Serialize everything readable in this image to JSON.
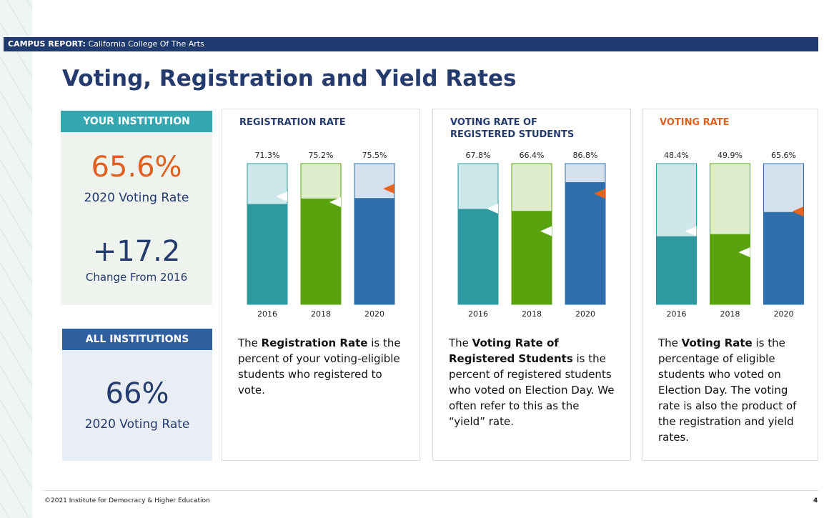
{
  "header": {
    "label": "CAMPUS REPORT:",
    "campus": "California College Of The Arts"
  },
  "title": "Voting, Registration and Yield Rates",
  "your_institution": {
    "heading": "YOUR INSTITUTION",
    "rate": "65.6%",
    "rate_label": "2020 Voting Rate",
    "change": "+17.2",
    "change_label": "Change From 2016"
  },
  "all_institutions": {
    "heading": "ALL INSTITUTIONS",
    "rate": "66%",
    "rate_label": "2020 Voting Rate"
  },
  "chart_data": [
    {
      "type": "bar",
      "title": "REGISTRATION RATE",
      "title_color": "#253b6e",
      "categories": [
        "2016",
        "2018",
        "2020"
      ],
      "values": [
        71.3,
        75.2,
        75.5
      ],
      "value_labels": [
        "71.3%",
        "75.2%",
        "75.5%"
      ],
      "markers": [
        76.6,
        72.6,
        82.2
      ],
      "marker_colors": [
        "#ffffff",
        "#ffffff",
        "#e8641e"
      ],
      "colors": [
        "#2e9aa0",
        "#5aa30f",
        "#2f6fab"
      ],
      "track_colors": [
        "#cde8ea",
        "#dfedcd",
        "#d5e0ee"
      ],
      "ylim": [
        0,
        100
      ],
      "description": [
        "The ",
        "Registration Rate",
        " is the percent of your voting-eligible students who registered to vote."
      ]
    },
    {
      "type": "bar",
      "title": "VOTING RATE OF REGISTERED STUDENTS",
      "title_color": "#253b6e",
      "categories": [
        "2016",
        "2018",
        "2020"
      ],
      "values": [
        67.8,
        66.4,
        86.8
      ],
      "value_labels": [
        "67.8%",
        "66.4%",
        "86.8%"
      ],
      "markers": [
        68,
        52,
        78.7
      ],
      "marker_colors": [
        "#ffffff",
        "#ffffff",
        "#e8641e"
      ],
      "colors": [
        "#2e9aa0",
        "#5aa30f",
        "#2f6fab"
      ],
      "track_colors": [
        "#cde8ea",
        "#dfedcd",
        "#d5e0ee"
      ],
      "ylim": [
        0,
        100
      ],
      "description": [
        "The ",
        "Voting Rate of Registered Students",
        " is the percent of registered students who voted on Election Day. We often refer to this as the “yield” rate."
      ]
    },
    {
      "type": "bar",
      "title": "VOTING RATE",
      "title_color": "#e2601f",
      "categories": [
        "2016",
        "2018",
        "2020"
      ],
      "values": [
        48.4,
        49.9,
        65.6
      ],
      "value_labels": [
        "48.4%",
        "49.9%",
        "65.6%"
      ],
      "markers": [
        52,
        37,
        66
      ],
      "marker_colors": [
        "#ffffff",
        "#ffffff",
        "#e8641e"
      ],
      "colors": [
        "#2e9aa0",
        "#5aa30f",
        "#2f6fab"
      ],
      "track_colors": [
        "#cde8ea",
        "#dfedcd",
        "#d5e0ee"
      ],
      "ylim": [
        0,
        100
      ],
      "description": [
        "The ",
        "Voting Rate",
        " is the percentage of eligible students who voted on Election Day. The voting rate is also the product of the registration and yield rates."
      ]
    }
  ],
  "footer": {
    "copyright": "©2021 Institute for Democracy & Higher Education",
    "page": "4"
  }
}
